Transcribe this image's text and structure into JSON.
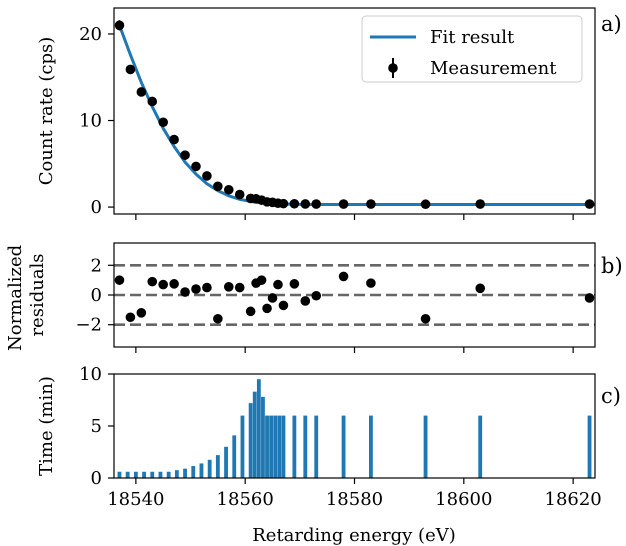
{
  "chart_data": [
    {
      "panel": "a",
      "panel_label": "a)",
      "type": "scatter",
      "ylabel": "Count rate (cps)",
      "ylim": [
        -0.8,
        23
      ],
      "yticks": [
        0,
        10,
        20
      ],
      "xlim": [
        18536,
        18624
      ],
      "legend": {
        "placement": "top-right",
        "entries": [
          "Fit result",
          "Measurement"
        ]
      },
      "series": [
        {
          "name": "Fit result",
          "kind": "line",
          "color": "#1f77b4",
          "x": [
            18537,
            18539,
            18541,
            18543,
            18545,
            18547,
            18549,
            18551,
            18553,
            18555,
            18557,
            18559,
            18561,
            18563,
            18565,
            18567,
            18569,
            18571,
            18573,
            18580,
            18600,
            18624
          ],
          "y": [
            21,
            17.6,
            14.4,
            11.6,
            9.1,
            7.0,
            5.2,
            3.8,
            2.7,
            1.9,
            1.3,
            0.9,
            0.65,
            0.5,
            0.4,
            0.35,
            0.32,
            0.3,
            0.3,
            0.3,
            0.3,
            0.3
          ]
        },
        {
          "name": "Measurement",
          "kind": "errorbar",
          "color": "#000000",
          "x": [
            18537,
            18539,
            18541,
            18543,
            18545,
            18547,
            18549,
            18551,
            18553,
            18555,
            18557,
            18559,
            18561,
            18562,
            18563,
            18564,
            18565,
            18566,
            18567,
            18569,
            18571,
            18573,
            18578,
            18583,
            18593,
            18603,
            18623
          ],
          "y": [
            21.0,
            15.9,
            13.3,
            12.2,
            9.8,
            7.8,
            6.0,
            4.7,
            3.6,
            2.4,
            2.0,
            1.45,
            1.0,
            0.95,
            0.8,
            0.6,
            0.55,
            0.45,
            0.4,
            0.38,
            0.36,
            0.35,
            0.35,
            0.35,
            0.33,
            0.35,
            0.35
          ],
          "yerr": [
            0.6,
            0.5,
            0.45,
            0.4,
            0.35,
            0.3,
            0.25,
            0.22,
            0.2,
            0.15,
            0.14,
            0.1,
            0.08,
            0.08,
            0.07,
            0.06,
            0.06,
            0.05,
            0.05,
            0.05,
            0.05,
            0.05,
            0.05,
            0.05,
            0.05,
            0.05,
            0.05
          ]
        }
      ]
    },
    {
      "panel": "b",
      "panel_label": "b)",
      "type": "scatter",
      "ylabel": "Normalized residuals",
      "ylim": [
        -3.5,
        3.5
      ],
      "yticks": [
        -2,
        0,
        2
      ],
      "tick_labels": [
        "−2",
        "0",
        "2"
      ],
      "xlim": [
        18536,
        18624
      ],
      "reference_lines": [
        -2,
        0,
        2
      ],
      "series": [
        {
          "kind": "scatter",
          "color": "#000000",
          "x": [
            18537,
            18539,
            18541,
            18543,
            18545,
            18547,
            18549,
            18551,
            18553,
            18555,
            18557,
            18559,
            18561,
            18562,
            18563,
            18564,
            18565,
            18566,
            18567,
            18569,
            18571,
            18573,
            18578,
            18583,
            18593,
            18603,
            18623
          ],
          "y": [
            1.0,
            -1.5,
            -1.2,
            0.9,
            0.7,
            0.75,
            0.2,
            0.4,
            0.5,
            -1.6,
            0.55,
            0.5,
            -1.1,
            0.8,
            1.0,
            -0.9,
            -0.2,
            0.7,
            -0.7,
            0.75,
            -0.4,
            -0.05,
            1.25,
            0.8,
            -1.6,
            0.45,
            -0.2
          ]
        }
      ]
    },
    {
      "panel": "c",
      "panel_label": "c)",
      "type": "bar",
      "ylabel": "Time (min)",
      "xlabel": "Retarding energy (eV)",
      "ylim": [
        0,
        10
      ],
      "yticks": [
        0,
        5,
        10
      ],
      "xlim": [
        18536,
        18624
      ],
      "xticks": [
        18540,
        18560,
        18580,
        18600,
        18620
      ],
      "color": "#1f77b4",
      "bar_width_ev": 0.7,
      "x": [
        18537,
        18538.5,
        18540,
        18541.5,
        18543,
        18544.5,
        18546,
        18547.5,
        18549,
        18550.5,
        18552,
        18553.5,
        18555,
        18556.5,
        18558,
        18559.5,
        18561,
        18561.75,
        18562.5,
        18563.25,
        18564,
        18564.75,
        18565.5,
        18566.25,
        18567,
        18569,
        18571,
        18573,
        18578,
        18583,
        18593,
        18603,
        18623
      ],
      "values": [
        0.6,
        0.6,
        0.6,
        0.6,
        0.6,
        0.6,
        0.6,
        0.75,
        0.9,
        1.15,
        1.4,
        1.75,
        2.2,
        3.0,
        4.1,
        6.0,
        7.2,
        8.3,
        9.5,
        7.8,
        6.0,
        6.0,
        6.0,
        6.0,
        6.0,
        6.0,
        6.0,
        6.0,
        6.0,
        6.0,
        6.0,
        6.0,
        6.0
      ]
    }
  ]
}
